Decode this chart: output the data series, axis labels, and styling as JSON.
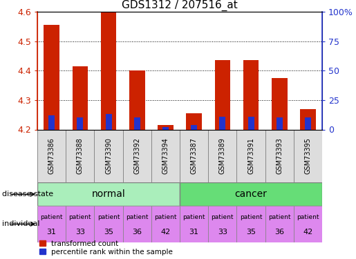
{
  "title": "GDS1312 / 207516_at",
  "samples": [
    "GSM73386",
    "GSM73388",
    "GSM73390",
    "GSM73392",
    "GSM73394",
    "GSM73387",
    "GSM73389",
    "GSM73391",
    "GSM73393",
    "GSM73395"
  ],
  "transformed_count": [
    4.555,
    4.415,
    4.6,
    4.4,
    4.215,
    4.255,
    4.435,
    4.435,
    4.375,
    4.27
  ],
  "percentile_rank": [
    12,
    10,
    13,
    10,
    2,
    4,
    11,
    11,
    10,
    10
  ],
  "percentile_max": 100,
  "ylim": [
    4.2,
    4.6
  ],
  "yticks": [
    4.2,
    4.3,
    4.4,
    4.5,
    4.6
  ],
  "right_yticks": [
    0,
    25,
    50,
    75,
    100
  ],
  "right_yticklabels": [
    "0",
    "25",
    "50",
    "75",
    "100%"
  ],
  "bar_color_red": "#cc2200",
  "bar_color_blue": "#2233cc",
  "normal_color": "#aaeebb",
  "cancer_color": "#66dd77",
  "individual_color": "#dd88ee",
  "individual_labels_top": [
    "patient",
    "patient",
    "patient",
    "patient",
    "patient",
    "patient",
    "patient",
    "patient",
    "patient",
    "patient"
  ],
  "individual_labels_bot": [
    "31",
    "33",
    "35",
    "36",
    "42",
    "31",
    "33",
    "35",
    "36",
    "42"
  ],
  "disease_state_label": "disease state",
  "individual_label": "individual",
  "legend_red": "transformed count",
  "legend_blue": "percentile rank within the sample",
  "left_axis_color": "#cc2200",
  "right_axis_color": "#2233cc",
  "title_fontsize": 11,
  "tick_fontsize": 9,
  "bar_width": 0.55,
  "sample_bg_color": "#dddddd",
  "sample_border_color": "#888888"
}
